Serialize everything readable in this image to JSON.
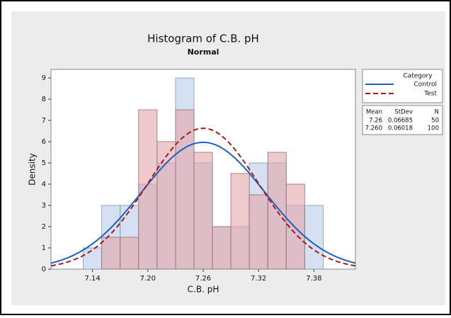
{
  "chart_data": {
    "type": "histogram",
    "title": "Histogram of C.B. pH",
    "subtitle": "Normal",
    "x_label": "C.B. pH",
    "y_label": "Density",
    "bins": [
      7.13,
      7.15,
      7.17,
      7.19,
      7.21,
      7.23,
      7.25,
      7.27,
      7.29,
      7.31,
      7.33,
      7.35,
      7.37,
      7.39
    ],
    "series": [
      {
        "name": "Control",
        "color": "#1f5fc0",
        "fill": "#b9cde9",
        "values": [
          1,
          3,
          3,
          4,
          5,
          9,
          5,
          2,
          2,
          5,
          5,
          3,
          3
        ],
        "mean": 7.26,
        "stdev": 0.06685,
        "n": 50
      },
      {
        "name": "Test",
        "color": "#a31b1b",
        "fill": "#e3a6aa",
        "values": [
          0,
          1.5,
          1.5,
          7.5,
          6,
          7.5,
          5.5,
          2,
          4.5,
          3.5,
          5.5,
          4,
          0
        ],
        "mean": {
          "value": 7.26,
          "label": "7.260"
        },
        "stdev": 0.06018,
        "n": 100
      }
    ],
    "legend_title": "Category",
    "stats_headers": [
      "Mean",
      "StDev",
      "N"
    ],
    "xlim": [
      7.095,
      7.425
    ],
    "ylim": [
      0,
      9.4
    ],
    "xticks": [
      7.14,
      {
        "value": 7.2,
        "label": "7.20"
      },
      7.26,
      7.32,
      7.38
    ],
    "yticks": [
      0,
      1,
      2,
      3,
      4,
      5,
      6,
      7,
      8,
      9
    ]
  }
}
